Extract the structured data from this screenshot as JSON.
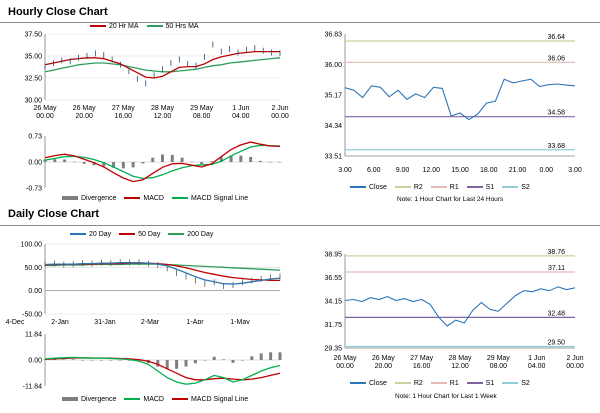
{
  "hourly_title": "Hourly Close Chart",
  "daily_title": "Daily Close Chart",
  "colors": {
    "price": "#1f4e79",
    "ma_red": "#c00000",
    "ma_green": "#2e9e5b",
    "blue": "#2e75b6",
    "signal": "#00b050",
    "divergence": "#7f7f7f",
    "r2": "#c4d79b",
    "r1": "#e6b8b7",
    "s1": "#8064a2",
    "s2": "#92cddc"
  },
  "chart_data": [
    {
      "id": "hourly-price",
      "type": "line",
      "ylim": [
        30.0,
        37.5
      ],
      "ytick_labels": [
        "37.50",
        "35.00",
        "32.50",
        "30.00"
      ],
      "xtick_labels": [
        [
          "26 May",
          "00.00"
        ],
        [
          "26 May",
          "20.00"
        ],
        [
          "27 May",
          "16.00"
        ],
        [
          "28 May",
          "12.00"
        ],
        [
          "29 May",
          "08.00"
        ],
        [
          "1 Jun",
          "04.00"
        ],
        [
          "2 Jun",
          "00.00"
        ]
      ],
      "series": [
        {
          "name": "Close",
          "values": [
            33.8,
            34.2,
            34.5,
            34.4,
            34.8,
            35.0,
            35.3,
            35.1,
            34.6,
            34.0,
            33.3,
            32.4,
            31.9,
            32.8,
            33.5,
            34.2,
            34.6,
            34.1,
            33.9,
            34.9,
            36.3,
            35.5,
            35.8,
            35.4,
            35.7,
            35.9,
            35.6,
            35.4,
            35.3
          ]
        },
        {
          "name": "20 Hr MA",
          "values": [
            34.0,
            34.2,
            34.4,
            34.6,
            34.7,
            34.8,
            34.8,
            34.7,
            34.4,
            34.1,
            33.6,
            33.1,
            32.6,
            32.5,
            32.7,
            33.2,
            33.7,
            33.8,
            33.8,
            34.1,
            34.6,
            34.9,
            35.1,
            35.3,
            35.4,
            35.5,
            35.5,
            35.5,
            35.5
          ]
        },
        {
          "name": "50 Hrs MA",
          "values": [
            33.2,
            33.4,
            33.6,
            33.8,
            34.0,
            34.1,
            34.2,
            34.2,
            34.1,
            34.0,
            33.8,
            33.6,
            33.4,
            33.3,
            33.2,
            33.2,
            33.3,
            33.4,
            33.5,
            33.7,
            33.9,
            34.0,
            34.2,
            34.3,
            34.4,
            34.5,
            34.6,
            34.7,
            34.8
          ]
        }
      ],
      "legend": [
        "20 Hr MA",
        "50 Hrs MA"
      ]
    },
    {
      "id": "hourly-macd",
      "type": "line",
      "ylim": [
        -0.73,
        0.73
      ],
      "ytick_labels": [
        "0.73",
        "0.00",
        "-0.73"
      ],
      "macd": [
        0.12,
        0.18,
        0.22,
        0.17,
        0.08,
        -0.02,
        -0.14,
        -0.3,
        -0.45,
        -0.55,
        -0.5,
        -0.32,
        -0.15,
        -0.05,
        -0.04,
        -0.09,
        -0.14,
        -0.05,
        0.15,
        0.35,
        0.48,
        0.56,
        0.5,
        0.45,
        0.44
      ],
      "signal": [
        0.05,
        0.1,
        0.15,
        0.16,
        0.13,
        0.07,
        -0.02,
        -0.14,
        -0.27,
        -0.4,
        -0.46,
        -0.44,
        -0.36,
        -0.25,
        -0.16,
        -0.1,
        -0.08,
        -0.07,
        0.02,
        0.17,
        0.3,
        0.42,
        0.47,
        0.46,
        0.45
      ],
      "legend": [
        "Divergence",
        "MACD",
        "MACD Signal Line"
      ]
    },
    {
      "id": "hourly-levels",
      "type": "line",
      "ylim": [
        33.51,
        36.83
      ],
      "ytick_labels": [
        "36.83",
        "36.00",
        "35.17",
        "34.34",
        "33.51"
      ],
      "xtick_labels": [
        "3.00",
        "6.00",
        "9.00",
        "12.00",
        "15.00",
        "18.00",
        "21.00",
        "0.00",
        "3.00"
      ],
      "close": [
        35.37,
        35.3,
        35.1,
        35.42,
        35.38,
        35.12,
        35.3,
        35.05,
        35.2,
        35.1,
        35.38,
        35.35,
        34.6,
        34.68,
        34.5,
        34.65,
        34.95,
        35.0,
        35.6,
        35.5,
        35.55,
        35.6,
        35.4,
        35.45,
        35.47,
        35.44,
        35.42
      ],
      "levels": [
        {
          "name": "R2",
          "value": 36.64,
          "label": "36.64"
        },
        {
          "name": "R1",
          "value": 36.06,
          "label": "36.06"
        },
        {
          "name": "S1",
          "value": 34.58,
          "label": "34.58"
        },
        {
          "name": "S2",
          "value": 33.68,
          "label": "33.68"
        }
      ],
      "legend": [
        "Close",
        "R2",
        "R1",
        "S1",
        "S2"
      ],
      "note": "Note: 1 Hour Chart for Last 24 Hours"
    },
    {
      "id": "daily-price",
      "type": "line",
      "ylim": [
        -50,
        100
      ],
      "ytick_labels": [
        "100.00",
        "50.00",
        "0.00",
        "-50.00"
      ],
      "xtick_labels": [
        "4-Dec",
        "2-Jan",
        "31-Jan",
        "2-Mar",
        "1-Apr",
        "1-May"
      ],
      "series": [
        {
          "name": "Close",
          "values": [
            57,
            58,
            56,
            57,
            59,
            58,
            60,
            59,
            61,
            60,
            61,
            58,
            55,
            48,
            38,
            30,
            22,
            15,
            18,
            10,
            12,
            18,
            22,
            25,
            28,
            30
          ]
        },
        {
          "name": "20 Day",
          "values": [
            56,
            57,
            57,
            57,
            58,
            58,
            59,
            59,
            60,
            60,
            60,
            59,
            57,
            53,
            46,
            38,
            30,
            23,
            19,
            15,
            14,
            16,
            19,
            22,
            25,
            27
          ]
        },
        {
          "name": "50 Day",
          "values": [
            55,
            56,
            56,
            57,
            57,
            57,
            58,
            58,
            58,
            59,
            59,
            59,
            58,
            56,
            53,
            49,
            44,
            39,
            35,
            31,
            28,
            26,
            24,
            23,
            22,
            22
          ]
        },
        {
          "name": "200 Day",
          "values": [
            54,
            54,
            55,
            55,
            55,
            56,
            56,
            56,
            56,
            57,
            57,
            57,
            57,
            56,
            55,
            54,
            53,
            52,
            51,
            50,
            49,
            48,
            47,
            46,
            45,
            44
          ]
        }
      ],
      "legend": [
        "20 Day",
        "50 Day",
        "200 Day"
      ]
    },
    {
      "id": "daily-macd",
      "type": "line",
      "ylim": [
        -11.84,
        11.84
      ],
      "ytick_labels": [
        "11.84",
        "0.00",
        "-11.84"
      ],
      "macd": [
        0.5,
        0.8,
        1.0,
        1.2,
        1.0,
        0.8,
        0.9,
        0.7,
        0.5,
        0.2,
        -0.5,
        -2,
        -5,
        -8,
        -10,
        -11,
        -10.5,
        -9,
        -7,
        -8,
        -10,
        -9,
        -7,
        -5,
        -3.5,
        -2.5
      ],
      "signal": [
        0.3,
        0.5,
        0.7,
        0.9,
        1.0,
        0.9,
        0.9,
        0.8,
        0.7,
        0.5,
        0.2,
        -0.6,
        -2,
        -4,
        -6,
        -8,
        -9,
        -9,
        -8.5,
        -8.3,
        -8.7,
        -9,
        -8.7,
        -8,
        -7,
        -6
      ],
      "legend": [
        "Divergence",
        "MACD",
        "MACD Signal Line"
      ]
    },
    {
      "id": "daily-levels",
      "type": "line",
      "ylim": [
        29.35,
        38.95
      ],
      "ytick_labels": [
        "38.95",
        "36.55",
        "34.15",
        "31.75",
        "29.35"
      ],
      "xtick_labels": [
        [
          "26 May",
          "00.00"
        ],
        [
          "26 May",
          "20.00"
        ],
        [
          "27 May",
          "16.00"
        ],
        [
          "28 May",
          "12.00"
        ],
        [
          "29 May",
          "08.00"
        ],
        [
          "1 Jun",
          "04.00"
        ],
        [
          "2 Jun",
          "00.00"
        ]
      ],
      "close": [
        34.2,
        34.3,
        34.1,
        34.5,
        34.3,
        34.6,
        34.2,
        34.4,
        34.1,
        34.3,
        33.8,
        32.5,
        31.6,
        32.2,
        31.9,
        33.2,
        34.0,
        33.3,
        33.1,
        33.9,
        34.7,
        35.2,
        35.1,
        35.4,
        35.2,
        35.6,
        35.3,
        35.5
      ],
      "levels": [
        {
          "name": "R2",
          "value": 38.76,
          "label": "38.76"
        },
        {
          "name": "R1",
          "value": 37.11,
          "label": "37.11"
        },
        {
          "name": "S1",
          "value": 32.48,
          "label": "32.48"
        },
        {
          "name": "S2",
          "value": 29.5,
          "label": "29.50"
        }
      ],
      "legend": [
        "Close",
        "R2",
        "R1",
        "S1",
        "S2"
      ],
      "note": "Note: 1 Hour Chart for Last 1 Week"
    }
  ]
}
